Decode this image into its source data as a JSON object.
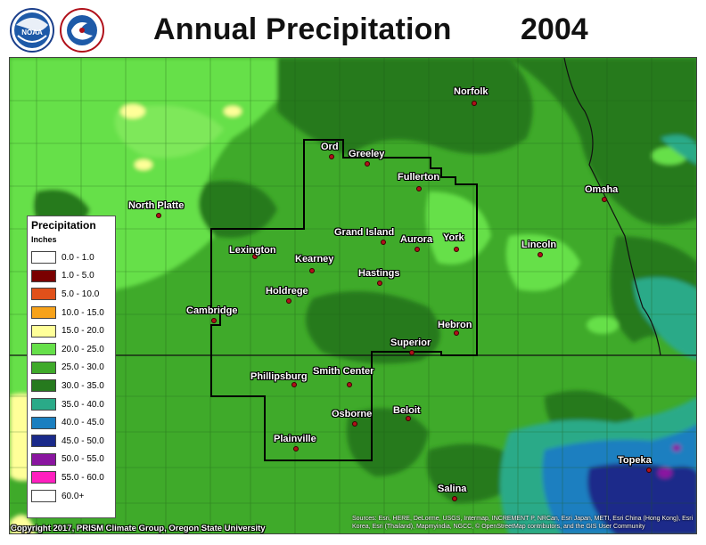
{
  "title": "Annual Precipitation",
  "year": "2004",
  "logos": [
    {
      "name": "NOAA",
      "text": "NOAA"
    },
    {
      "name": "National Weather Service",
      "text": "NATIONAL WEATHER SERVICE"
    }
  ],
  "legend": {
    "title": "Precipitation",
    "units": "Inches",
    "items": [
      {
        "label": "0.0 - 1.0",
        "color": "#ffffff"
      },
      {
        "label": "1.0 - 5.0",
        "color": "#7a0000"
      },
      {
        "label": "5.0 - 10.0",
        "color": "#e0501a"
      },
      {
        "label": "10.0 - 15.0",
        "color": "#f7a21a"
      },
      {
        "label": "15.0 - 20.0",
        "color": "#ffff99"
      },
      {
        "label": "20.0 - 25.0",
        "color": "#66e04a"
      },
      {
        "label": "25.0 - 30.0",
        "color": "#3faa2a"
      },
      {
        "label": "30.0 - 35.0",
        "color": "#267a1e"
      },
      {
        "label": "35.0 - 40.0",
        "color": "#2aaa88"
      },
      {
        "label": "40.0 - 45.0",
        "color": "#1a7fc0"
      },
      {
        "label": "45.0 - 50.0",
        "color": "#1a2a8a"
      },
      {
        "label": "50.0 - 55.0",
        "color": "#8a15a0"
      },
      {
        "label": "55.0 - 60.0",
        "color": "#ff1fbf"
      },
      {
        "label": "60.0+",
        "color": "#ffffff"
      }
    ]
  },
  "cities": [
    {
      "name": "Norfolk"
    },
    {
      "name": "Ord"
    },
    {
      "name": "Greeley"
    },
    {
      "name": "Fullerton"
    },
    {
      "name": "North Platte"
    },
    {
      "name": "Omaha"
    },
    {
      "name": "Grand Island"
    },
    {
      "name": "Aurora"
    },
    {
      "name": "York"
    },
    {
      "name": "Lincoln"
    },
    {
      "name": "Lexington"
    },
    {
      "name": "Kearney"
    },
    {
      "name": "Hastings"
    },
    {
      "name": "Holdrege"
    },
    {
      "name": "Cambridge"
    },
    {
      "name": "Hebron"
    },
    {
      "name": "Superior"
    },
    {
      "name": "Phillipsburg"
    },
    {
      "name": "Smith Center"
    },
    {
      "name": "Osborne"
    },
    {
      "name": "Beloit"
    },
    {
      "name": "Plainville"
    },
    {
      "name": "Topeka"
    },
    {
      "name": "Salina"
    }
  ],
  "footer": {
    "copyright": "Copyright 2017, PRISM Climate Group, Oregon State University",
    "attribution": "Sources: Esri, HERE, DeLorme, USGS, Intermap, INCREMENT P, NRCan, Esri Japan, METI, Esri China (Hong Kong), Esri Korea, Esri (Thailand), Mapmyindia, NGCC, © OpenStreetMap contributors, and the GIS User Community"
  }
}
